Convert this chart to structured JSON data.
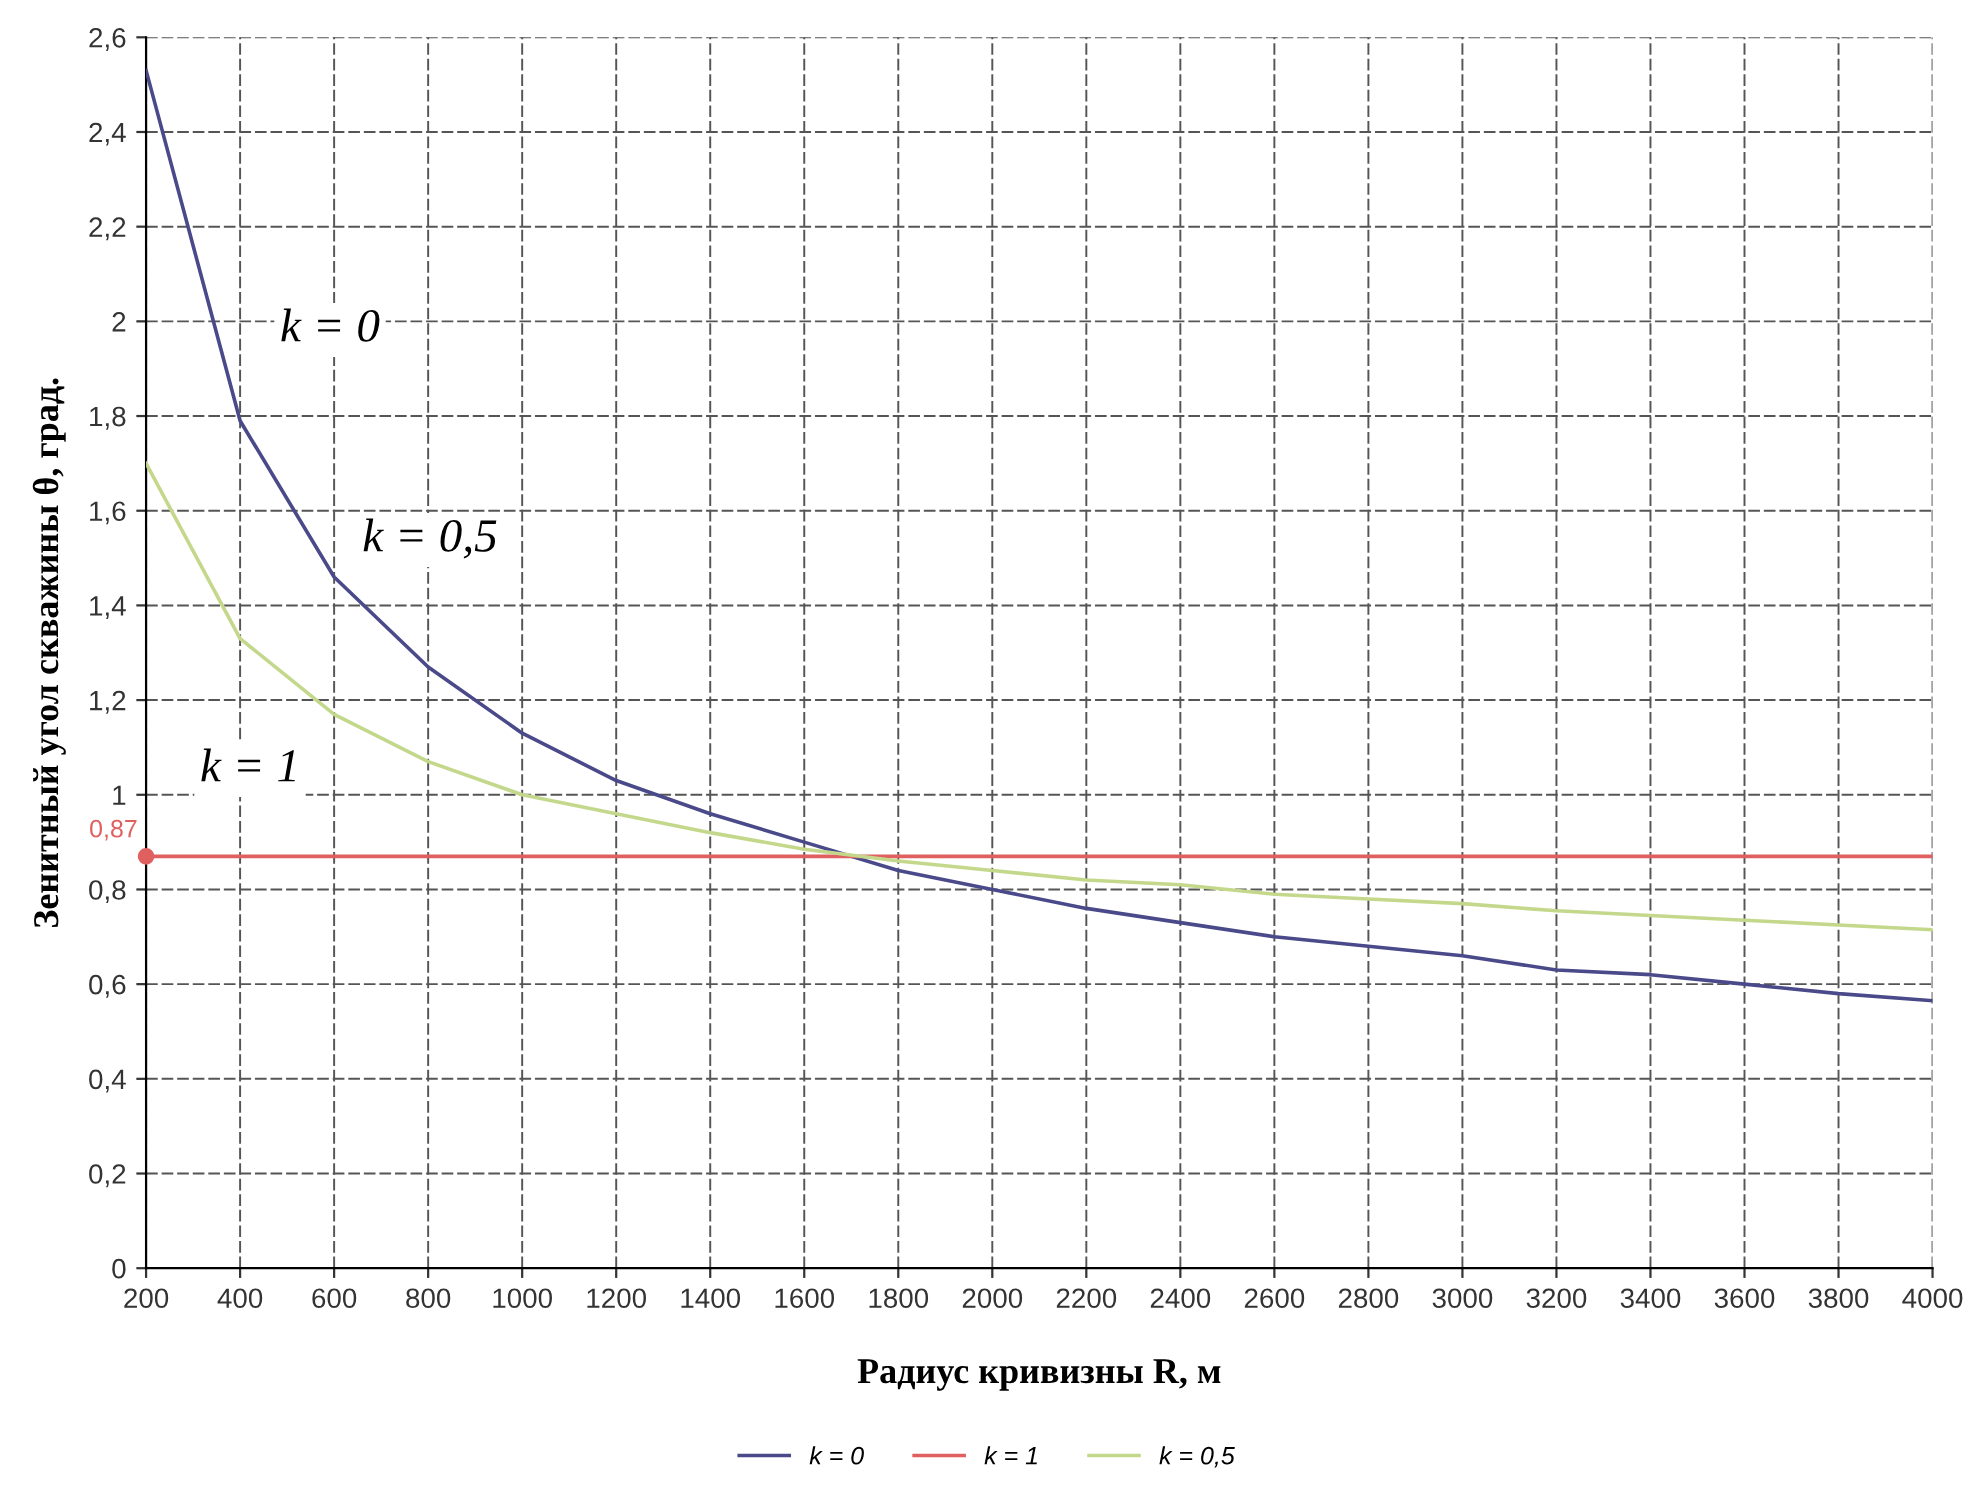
{
  "chart_data": {
    "type": "line",
    "xlabel": "Радиус кривизны R, м",
    "ylabel": "Зенитный угол скважины θ, град.",
    "x": [
      200,
      400,
      600,
      800,
      1000,
      1200,
      1400,
      1600,
      1800,
      2000,
      2200,
      2400,
      2600,
      2800,
      3000,
      3200,
      3400,
      3600,
      3800,
      4000
    ],
    "series": [
      {
        "name": "k = 0",
        "color": "#4a4a8a",
        "values": [
          2.53,
          1.79,
          1.46,
          1.27,
          1.13,
          1.03,
          0.96,
          0.9,
          0.84,
          0.8,
          0.76,
          0.73,
          0.7,
          0.68,
          0.66,
          0.63,
          0.62,
          0.6,
          0.58,
          0.565
        ]
      },
      {
        "name": "k = 1",
        "color": "#e06060",
        "values": [
          0.87,
          0.87,
          0.87,
          0.87,
          0.87,
          0.87,
          0.87,
          0.87,
          0.87,
          0.87,
          0.87,
          0.87,
          0.87,
          0.87,
          0.87,
          0.87,
          0.87,
          0.87,
          0.87,
          0.87
        ]
      },
      {
        "name": "k = 0,5",
        "color": "#c4d88c",
        "values": [
          1.7,
          1.33,
          1.17,
          1.07,
          1.0,
          0.96,
          0.92,
          0.885,
          0.86,
          0.84,
          0.82,
          0.81,
          0.79,
          0.78,
          0.77,
          0.755,
          0.745,
          0.735,
          0.725,
          0.715
        ]
      }
    ],
    "xlim": [
      200,
      4000
    ],
    "xticks": [
      200,
      400,
      600,
      800,
      1000,
      1200,
      1400,
      1600,
      1800,
      2000,
      2200,
      2400,
      2600,
      2800,
      3000,
      3200,
      3400,
      3600,
      3800,
      4000
    ],
    "ylim": [
      0,
      2.6
    ],
    "yticks": [
      0,
      {
        "value": 0.2,
        "label": "0,2"
      },
      {
        "value": 0.4,
        "label": "0,4"
      },
      {
        "value": 0.6,
        "label": "0,6"
      },
      {
        "value": 0.8,
        "label": "0,8"
      },
      1,
      {
        "value": 1.2,
        "label": "1,2"
      },
      {
        "value": 1.4,
        "label": "1,4"
      },
      {
        "value": 1.6,
        "label": "1,6"
      },
      {
        "value": 1.8,
        "label": "1,8"
      },
      2,
      {
        "value": 2.2,
        "label": "2,2"
      },
      {
        "value": 2.4,
        "label": "2,4"
      },
      {
        "value": 2.6,
        "label": "2,6"
      }
    ],
    "annotations": [
      {
        "text": "0,87",
        "x": 200,
        "y": 0.87
      },
      "k = 0",
      "k = 0,5",
      "k = 1"
    ],
    "grid": true,
    "legend": "bottom",
    "line_style": "solid",
    "marker": "none"
  }
}
